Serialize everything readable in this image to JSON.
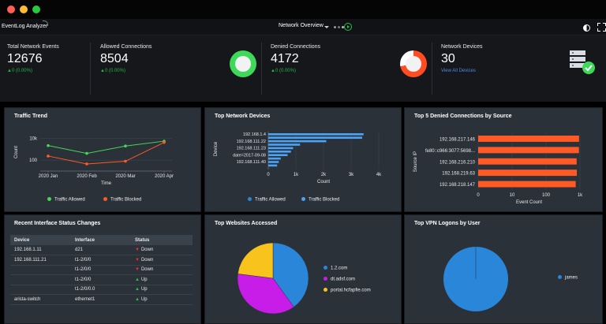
{
  "app": {
    "name": "EventLog Analyzer",
    "view": "Network Overview"
  },
  "colors": {
    "allowed": "#45d65a",
    "blocked": "#ff5a25",
    "bar_blue": "#4aa3f5",
    "bar_orange": "#ff5a25",
    "pie_blue": "#2a86d8",
    "pie_purple": "#c81ce8",
    "pie_yellow": "#f8c31d"
  },
  "stats": [
    {
      "label": "Total Network Events",
      "value": "12676",
      "delta": "▲0 (0.00%)"
    },
    {
      "label": "Allowed Connections",
      "value": "8504",
      "delta": "▲0 (0.00%)"
    },
    {
      "label": "Denied Connections",
      "value": "4172",
      "delta": "▲0 (0.00%)"
    },
    {
      "label": "Network Devices",
      "value": "30",
      "link": "View All Devices"
    }
  ],
  "icons": [
    "server-check-icon",
    "theme-toggle-icon",
    "fullscreen-icon",
    "chevron-down-icon",
    "next-page-icon"
  ],
  "traffic_trend": {
    "title": "Traffic Trend",
    "legend_allowed": "Traffic Allowed",
    "legend_blocked": "Traffic Blocked"
  },
  "top_devices": {
    "title": "Top Network Devices",
    "legend_allowed": "Traffic Allowed",
    "legend_blocked": "Traffic Blocked"
  },
  "denied": {
    "title": "Top 5 Denied Connections by Source"
  },
  "interfaces": {
    "title": "Recent Interface Status Changes",
    "headers": [
      "Device",
      "Interface",
      "Status"
    ],
    "rows": [
      {
        "device": "192.168.1.11",
        "iface": "d21",
        "status": "Down"
      },
      {
        "device": "192.168.111.21",
        "iface": "t1-2/0/0",
        "status": "Down"
      },
      {
        "device": "",
        "iface": "t1-2/0/0",
        "status": "Down"
      },
      {
        "device": "",
        "iface": "t1-2/0/0",
        "status": "Up"
      },
      {
        "device": "",
        "iface": "t1-2/0/0.0",
        "status": "Up"
      },
      {
        "device": "arista-switch",
        "iface": "ethernet1",
        "status": "Up"
      }
    ]
  },
  "websites": {
    "title": "Top Websites Accessed"
  },
  "vpn": {
    "title": "Top VPN Logons by User"
  },
  "chart_data": [
    {
      "type": "line",
      "title": "Traffic Trend",
      "xlabel": "Time",
      "ylabel": "Count",
      "log_scale": true,
      "y_ticks": [
        "10k",
        "100"
      ],
      "categories": [
        "2020 Jan",
        "2020 Feb",
        "2020 Mar",
        "2020 Apr"
      ],
      "series": [
        {
          "name": "Traffic Allowed",
          "values": [
            2200,
            420,
            2000,
            5600
          ]
        },
        {
          "name": "Traffic Blocked",
          "values": [
            240,
            45,
            80,
            4300
          ]
        }
      ],
      "legend": "bottom"
    },
    {
      "type": "bar",
      "orientation": "horizontal",
      "title": "Top Network Devices",
      "xlabel": "Count",
      "ylabel": "Device",
      "categories": [
        "192.168.1.4",
        "",
        "192.168.111.22",
        "",
        "192.168.111.23",
        "",
        "date=2017-09-08",
        "",
        "192.168.111.40",
        ""
      ],
      "series": [
        {
          "name": "Traffic Allowed",
          "values": [
            3450,
            3400,
            2100,
            1150,
            900,
            820,
            700,
            450,
            380,
            320
          ]
        },
        {
          "name": "Traffic Blocked",
          "values": [
            0,
            0,
            0,
            0,
            0,
            0,
            0,
            0,
            0,
            0
          ]
        }
      ],
      "x_ticks": [
        "0",
        "1k",
        "2k",
        "3k",
        "4k"
      ],
      "xlim": [
        0,
        4000
      ],
      "legend": "bottom"
    },
    {
      "type": "bar",
      "orientation": "horizontal",
      "title": "Top 5 Denied Connections by Source",
      "xlabel": "Event Count",
      "ylabel": "Source IP",
      "categories": [
        "192.168.217.146",
        "fe80::c966:3077:5698...",
        "192.168.216.210",
        "192.168.219.63",
        "192.168.218.147"
      ],
      "values": [
        940,
        930,
        800,
        810,
        750
      ],
      "x_ticks": [
        "0",
        "10",
        "100",
        "1k"
      ],
      "log_scale": true
    },
    {
      "type": "pie",
      "title": "Top Websites Accessed",
      "categories": [
        "1.2.com",
        "dt.adsf.com",
        "portal.hcfapfie.com"
      ],
      "values": [
        40,
        37,
        23
      ]
    },
    {
      "type": "pie",
      "title": "Top VPN Logons by User",
      "categories": [
        "james"
      ],
      "values": [
        100
      ]
    }
  ]
}
